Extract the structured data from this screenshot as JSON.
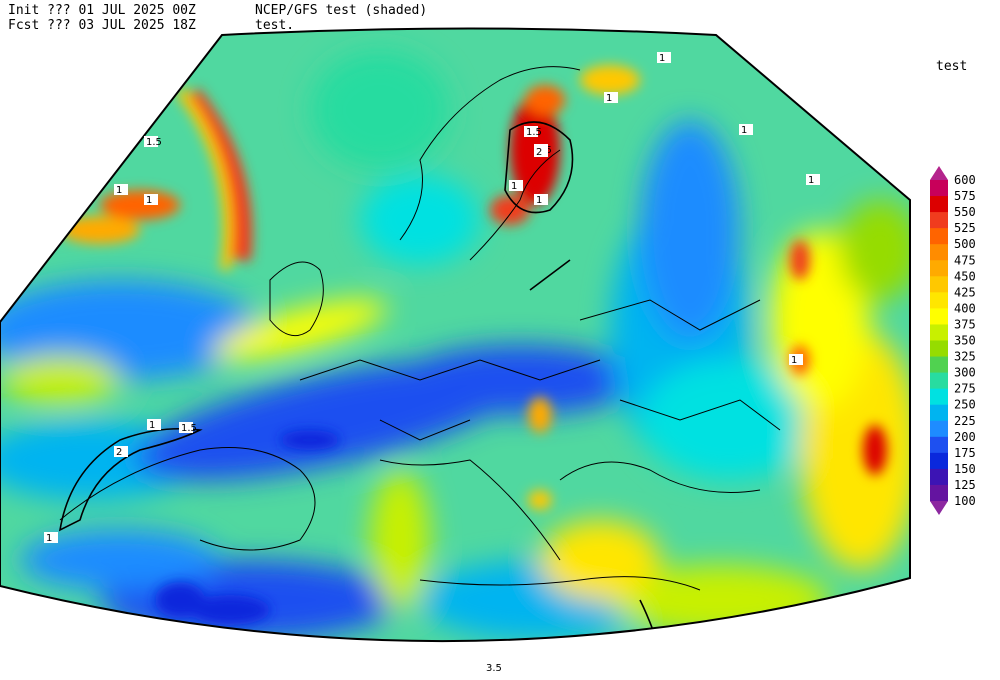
{
  "header": {
    "init": "Init  ??? 01 JUL 2025 00Z",
    "fcst": "Fcst ??? 03 JUL 2025 18Z",
    "model": "NCEP/GFS test (shaded)",
    "contour": "test."
  },
  "colorbar": {
    "title": "test",
    "levels": [
      600,
      575,
      550,
      525,
      500,
      475,
      450,
      425,
      400,
      375,
      350,
      325,
      300,
      275,
      250,
      225,
      200,
      175,
      150,
      125,
      100
    ],
    "colors": [
      "#b4248c",
      "#c8005a",
      "#dc0000",
      "#f03c1e",
      "#ff6400",
      "#ff8c00",
      "#ffaa00",
      "#ffc800",
      "#ffe600",
      "#ffff00",
      "#c8f000",
      "#96dc00",
      "#50d250",
      "#28dca0",
      "#00e1e1",
      "#00b4f0",
      "#1e8cff",
      "#1e50f0",
      "#0a28dc",
      "#3c14b4",
      "#6414a0",
      "#8c28a0"
    ]
  },
  "contour_labels": [
    "1.5",
    "1",
    "1",
    "1.5",
    "1",
    "1.5",
    "2",
    "1",
    "1",
    "1",
    "1",
    "1.5",
    "1",
    "2",
    "1",
    "1",
    "1",
    "3.5"
  ]
}
